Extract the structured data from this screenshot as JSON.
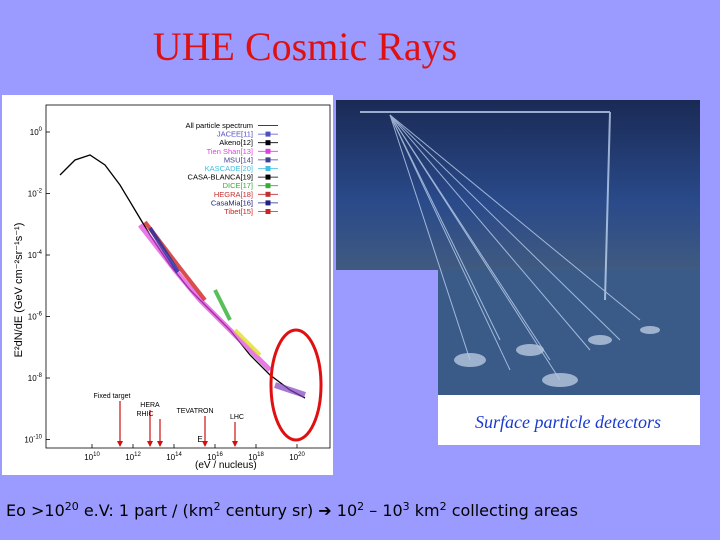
{
  "header": {
    "title": "UHE Cosmic Rays"
  },
  "figure": {
    "y_axis_label": "E²dN/dE   (GeV cm⁻²sr⁻¹s⁻¹)",
    "x_axis_symbol": "E",
    "x_axis_label": "(eV / nucleus)",
    "y_ticks": [
      {
        "base": "10",
        "exp": "0"
      },
      {
        "base": "10",
        "exp": "-2"
      },
      {
        "base": "10",
        "exp": "-4"
      },
      {
        "base": "10",
        "exp": "-6"
      },
      {
        "base": "10",
        "exp": "-8"
      },
      {
        "base": "10",
        "exp": "-10"
      }
    ],
    "x_ticks": [
      {
        "base": "10",
        "exp": "10"
      },
      {
        "base": "10",
        "exp": "12"
      },
      {
        "base": "10",
        "exp": "14"
      },
      {
        "base": "10",
        "exp": "16"
      },
      {
        "base": "10",
        "exp": "18"
      },
      {
        "base": "10",
        "exp": "20"
      }
    ],
    "legend": [
      {
        "label": "All particle spectrum",
        "color": "#000000"
      },
      {
        "label": "JACEE[11]",
        "color": "#5050c0"
      },
      {
        "label": "Akeno[12]",
        "color": "#000000"
      },
      {
        "label": "Tien Shan[13]",
        "color": "#e040e0"
      },
      {
        "label": "MSU[14]",
        "color": "#404090"
      },
      {
        "label": "KASCADE[20]",
        "color": "#40c0e0"
      },
      {
        "label": "CASA-BLANCA[19]",
        "color": "#000000"
      },
      {
        "label": "DICE[17]",
        "color": "#30b030"
      },
      {
        "label": "HEGRA[18]",
        "color": "#c03030"
      },
      {
        "label": "CasaMia[16]",
        "color": "#202080"
      },
      {
        "label": "Tibet[15]",
        "color": "#d02020"
      }
    ],
    "accelerators": [
      "Fixed target",
      "HERA",
      "RHIC",
      "TEVATRON",
      "LHC"
    ]
  },
  "photo": {
    "caption": "Surface particle detectors"
  },
  "footer": {
    "segments": [
      {
        "text": "Eo >10"
      },
      {
        "sup": "20"
      },
      {
        "text": " e.V: 1 part / (km"
      },
      {
        "sup": "2"
      },
      {
        "text": " century sr)  ➔  10"
      },
      {
        "sup": "2"
      },
      {
        "text": " – 10"
      },
      {
        "sup": "3"
      },
      {
        "text": " km"
      },
      {
        "sup": "2"
      },
      {
        "text": " collecting areas"
      }
    ]
  }
}
